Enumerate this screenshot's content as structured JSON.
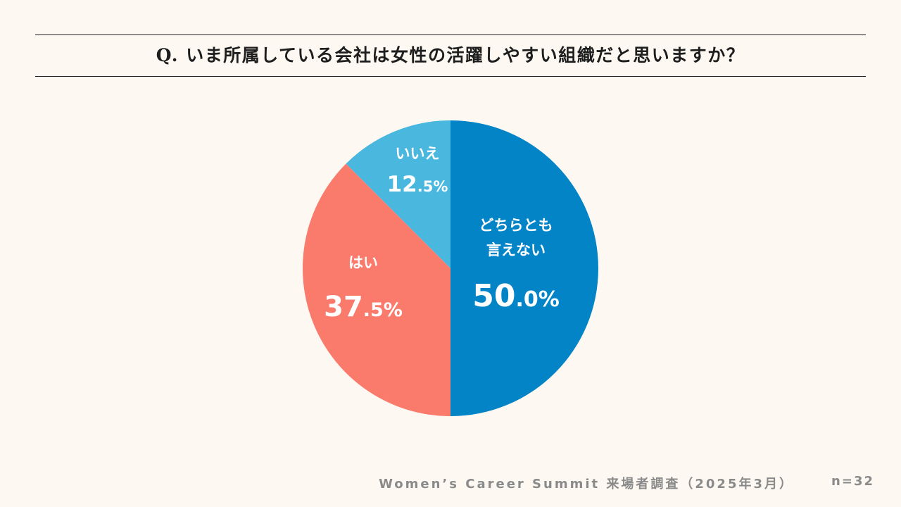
{
  "question": "Q. いま所属している会社は女性の活躍しやすい組織だと思いますか？",
  "footer": {
    "source": "Women’s Career Summit 来場者調査（2025年3月）",
    "sample": "n=32"
  },
  "chart_data": {
    "type": "pie",
    "title": "Q. いま所属している会社は女性の活躍しやすい組織だと思いますか？",
    "start_angle": "12 o'clock",
    "direction": "clockwise",
    "slices": [
      {
        "label": [
          "どちらとも",
          "言えない"
        ],
        "value": 50.0,
        "value_int": "50",
        "value_dec": ".0%",
        "color": "#0284c7"
      },
      {
        "label": [
          "はい"
        ],
        "value": 37.5,
        "value_int": "37",
        "value_dec": ".5%",
        "color": "#fa7a6c"
      },
      {
        "label": [
          "いいえ"
        ],
        "value": 12.5,
        "value_int": "12",
        "value_dec": ".5%",
        "color": "#4ab8de"
      }
    ],
    "label_color": "#ffffff"
  }
}
